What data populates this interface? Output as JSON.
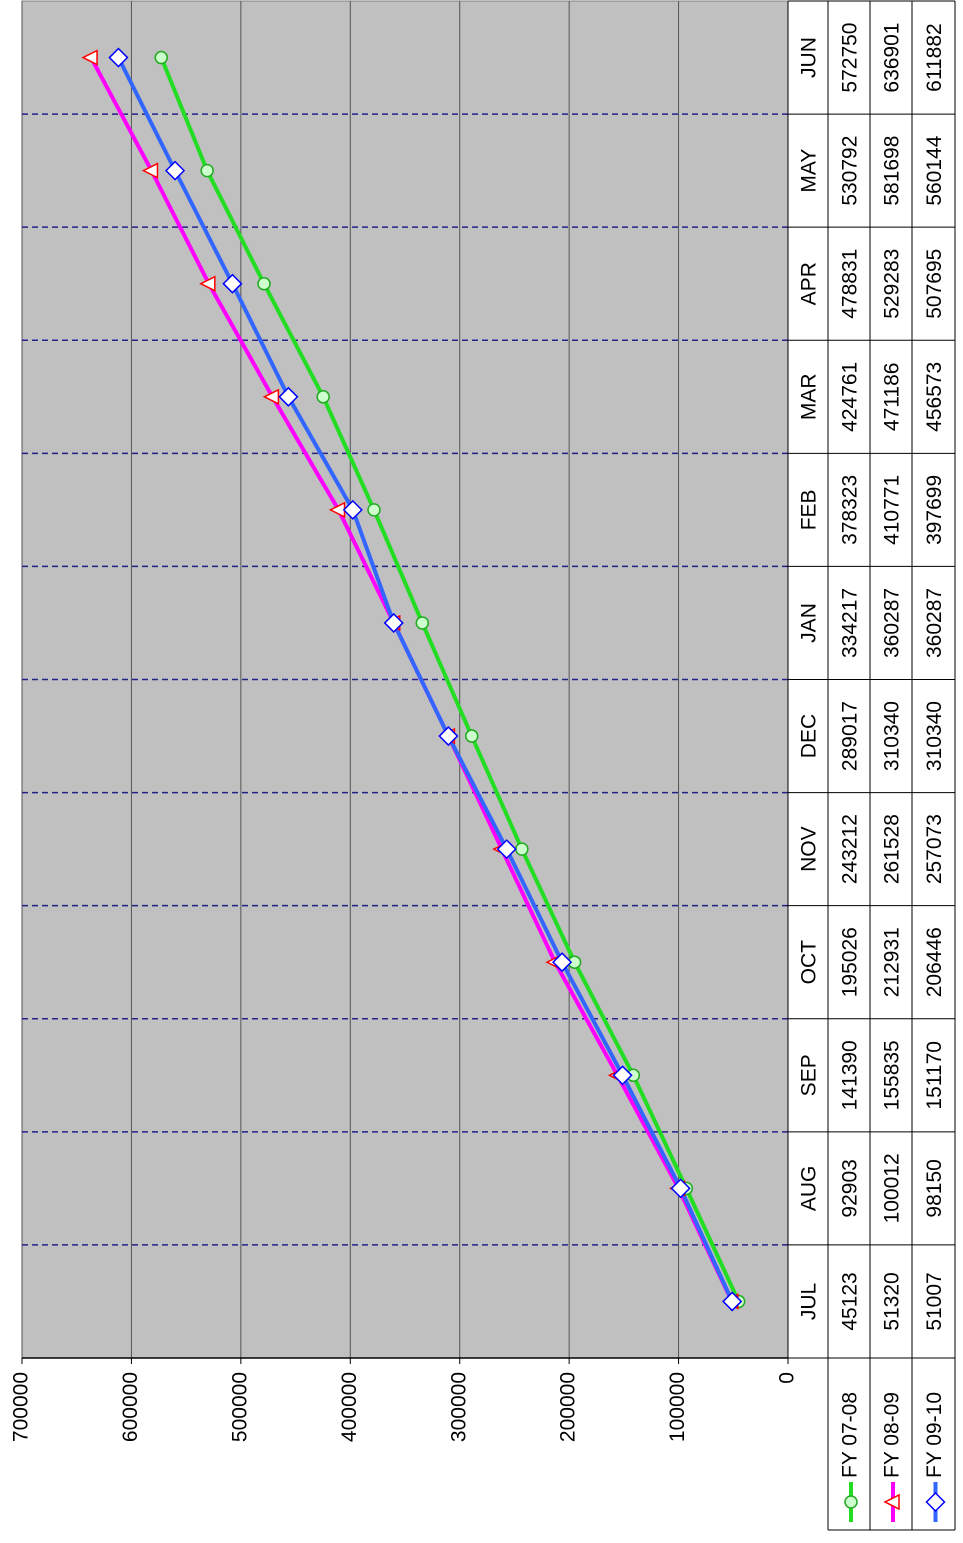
{
  "chart_data": {
    "type": "line",
    "categories": [
      "JUL",
      "AUG",
      "SEP",
      "OCT",
      "NOV",
      "DEC",
      "JAN",
      "FEB",
      "MAR",
      "APR",
      "MAY",
      "JUN"
    ],
    "series": [
      {
        "name": "FY 07-08",
        "color": "#22dd22",
        "marker": "circle",
        "marker_color": "#ccffcc",
        "marker_edge": "#22aa22",
        "values": [
          45123,
          92903,
          141390,
          195026,
          243212,
          289017,
          334217,
          378323,
          424761,
          478831,
          530792,
          572750
        ]
      },
      {
        "name": "FY 08-09",
        "color": "#ff00ff",
        "marker": "triangle",
        "marker_color": "#ffffff",
        "marker_edge": "#ff0000",
        "values": [
          51320,
          100012,
          155835,
          212931,
          261528,
          310340,
          360287,
          410771,
          471186,
          529283,
          581698,
          636901
        ]
      },
      {
        "name": "FY 09-10",
        "color": "#3366ff",
        "marker": "diamond",
        "marker_color": "#ffffff",
        "marker_edge": "#0000ff",
        "values": [
          51007,
          98150,
          151170,
          206446,
          257073,
          310340,
          360287,
          397699,
          456573,
          507695,
          560144,
          611882
        ]
      }
    ],
    "ylim": [
      0,
      700000
    ],
    "yticks": [
      0,
      100000,
      200000,
      300000,
      400000,
      500000,
      600000,
      700000
    ],
    "grid": true,
    "plot_background": "#c0c0c0",
    "data_table": true
  }
}
